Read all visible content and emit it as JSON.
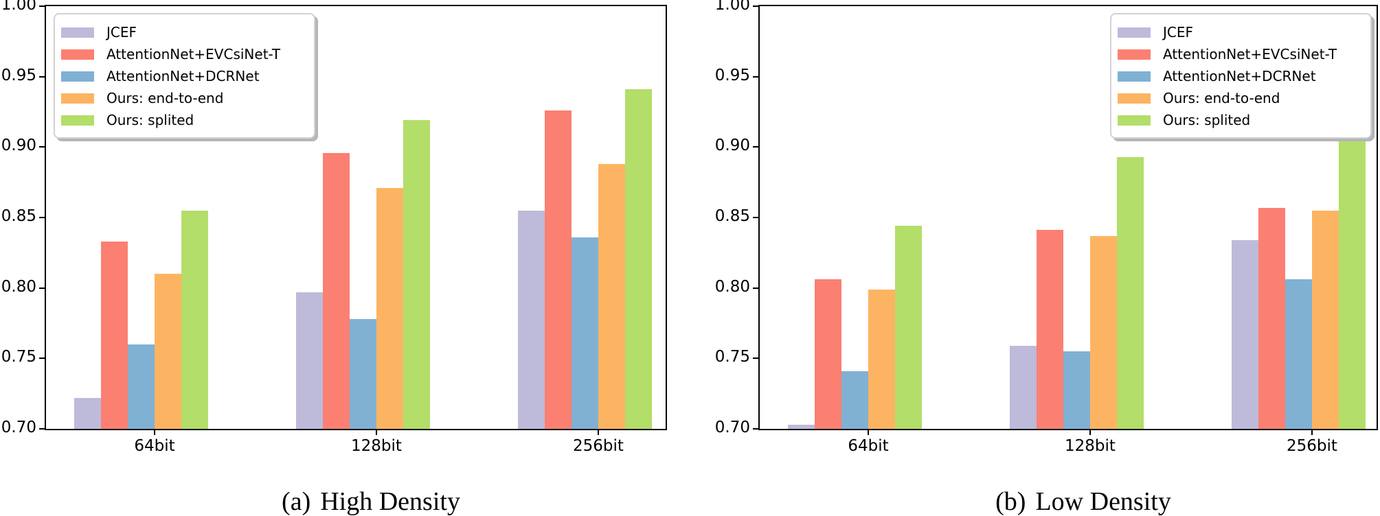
{
  "figure": {
    "background": "#ffffff",
    "axis_color": "#000000",
    "legend_border_color": "#d2d2d2",
    "legend_shadow_color": "#b6b6b6"
  },
  "chart_data": [
    {
      "type": "bar",
      "panel_id": "high-density",
      "caption_label": "(a)",
      "caption_text": "High Density",
      "categories": [
        "64bit",
        "128bit",
        "256bit"
      ],
      "ylim": [
        0.7,
        1.0
      ],
      "ytick_step": 0.05,
      "ytick_labels": [
        "1.00",
        "0.95",
        "0.90",
        "0.85",
        "0.80",
        "0.75",
        "0.70"
      ],
      "grid": false,
      "legend_position": "top-left",
      "series": [
        {
          "name": "JCEF",
          "color": "#bebada",
          "values": [
            0.722,
            0.797,
            0.855
          ]
        },
        {
          "name": "AttentionNet+EVCsiNet-T",
          "color": "#fb8072",
          "values": [
            0.833,
            0.896,
            0.926
          ]
        },
        {
          "name": "AttentionNet+DCRNet",
          "color": "#80b1d3",
          "values": [
            0.76,
            0.778,
            0.836
          ]
        },
        {
          "name": "Ours: end-to-end",
          "color": "#fdb462",
          "values": [
            0.81,
            0.871,
            0.888
          ]
        },
        {
          "name": "Ours: splited",
          "color": "#b3de69",
          "values": [
            0.855,
            0.919,
            0.941
          ]
        }
      ]
    },
    {
      "type": "bar",
      "panel_id": "low-density",
      "caption_label": "(b)",
      "caption_text": "Low Density",
      "categories": [
        "64bit",
        "128bit",
        "256bit"
      ],
      "ylim": [
        0.7,
        1.0
      ],
      "ytick_step": 0.05,
      "ytick_labels": [
        "1.00",
        "0.95",
        "0.90",
        "0.85",
        "0.80",
        "0.75",
        "0.70"
      ],
      "grid": false,
      "legend_position": "top-right",
      "series": [
        {
          "name": "JCEF",
          "color": "#bebada",
          "values": [
            0.703,
            0.759,
            0.834
          ]
        },
        {
          "name": "AttentionNet+EVCsiNet-T",
          "color": "#fb8072",
          "values": [
            0.806,
            0.841,
            0.857
          ]
        },
        {
          "name": "AttentionNet+DCRNet",
          "color": "#80b1d3",
          "values": [
            0.741,
            0.755,
            0.806
          ]
        },
        {
          "name": "Ours: end-to-end",
          "color": "#fdb462",
          "values": [
            0.799,
            0.837,
            0.855
          ]
        },
        {
          "name": "Ours: splited",
          "color": "#b3de69",
          "values": [
            0.844,
            0.893,
            0.91
          ]
        }
      ]
    }
  ]
}
